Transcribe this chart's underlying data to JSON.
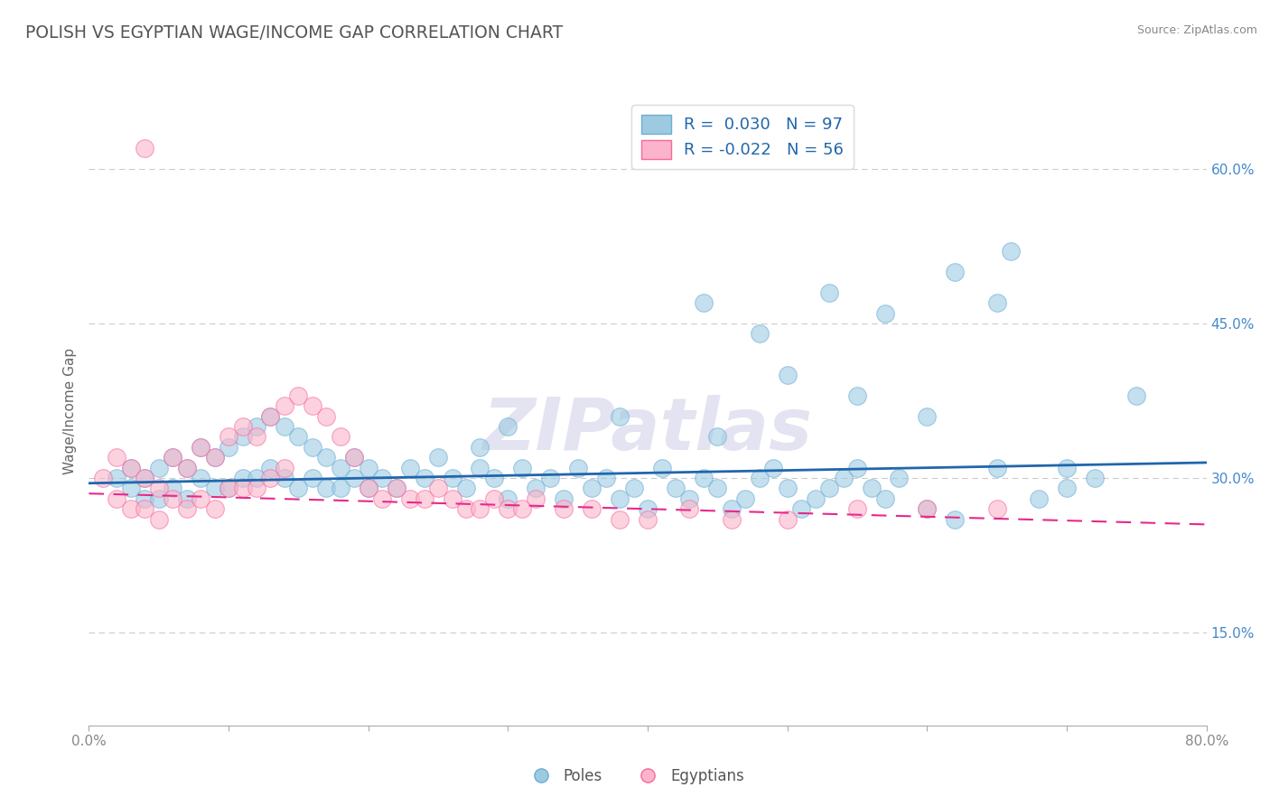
{
  "title": "POLISH VS EGYPTIAN WAGE/INCOME GAP CORRELATION CHART",
  "source": "Source: ZipAtlas.com",
  "ylabel": "Wage/Income Gap",
  "xlim": [
    0.0,
    0.8
  ],
  "ylim": [
    0.06,
    0.67
  ],
  "yticks": [
    0.15,
    0.3,
    0.45,
    0.6
  ],
  "yticklabels": [
    "15.0%",
    "30.0%",
    "45.0%",
    "60.0%"
  ],
  "poles_R": 0.03,
  "poles_N": 97,
  "egyptians_R": -0.022,
  "egyptians_N": 56,
  "blue_color": "#9ecae1",
  "pink_color": "#fbb4c9",
  "blue_edge_color": "#6baed6",
  "pink_edge_color": "#f768a1",
  "blue_line_color": "#2166ac",
  "pink_line_color": "#e7298a",
  "grid_color": "#cccccc",
  "title_color": "#555555",
  "axis_color": "#888888",
  "ytick_color": "#4488cc",
  "watermark": "ZIPatlas",
  "watermark_color": "#bbbbdd",
  "poles_x": [
    0.02,
    0.03,
    0.03,
    0.04,
    0.04,
    0.05,
    0.05,
    0.06,
    0.06,
    0.07,
    0.07,
    0.08,
    0.08,
    0.09,
    0.09,
    0.1,
    0.1,
    0.11,
    0.11,
    0.12,
    0.12,
    0.13,
    0.13,
    0.14,
    0.14,
    0.15,
    0.15,
    0.16,
    0.16,
    0.17,
    0.17,
    0.18,
    0.18,
    0.19,
    0.19,
    0.2,
    0.2,
    0.21,
    0.22,
    0.23,
    0.24,
    0.25,
    0.26,
    0.27,
    0.28,
    0.28,
    0.29,
    0.3,
    0.3,
    0.31,
    0.32,
    0.33,
    0.34,
    0.35,
    0.36,
    0.37,
    0.38,
    0.39,
    0.4,
    0.41,
    0.42,
    0.43,
    0.44,
    0.45,
    0.46,
    0.47,
    0.48,
    0.49,
    0.5,
    0.51,
    0.52,
    0.53,
    0.54,
    0.55,
    0.56,
    0.57,
    0.58,
    0.6,
    0.62,
    0.65,
    0.68,
    0.7,
    0.72,
    0.38,
    0.45,
    0.5,
    0.55,
    0.6,
    0.65,
    0.7,
    0.44,
    0.48,
    0.53,
    0.57,
    0.62,
    0.66,
    0.75
  ],
  "poles_y": [
    0.3,
    0.29,
    0.31,
    0.28,
    0.3,
    0.28,
    0.31,
    0.29,
    0.32,
    0.28,
    0.31,
    0.3,
    0.33,
    0.29,
    0.32,
    0.29,
    0.33,
    0.3,
    0.34,
    0.3,
    0.35,
    0.31,
    0.36,
    0.3,
    0.35,
    0.29,
    0.34,
    0.3,
    0.33,
    0.29,
    0.32,
    0.29,
    0.31,
    0.3,
    0.32,
    0.29,
    0.31,
    0.3,
    0.29,
    0.31,
    0.3,
    0.32,
    0.3,
    0.29,
    0.33,
    0.31,
    0.3,
    0.35,
    0.28,
    0.31,
    0.29,
    0.3,
    0.28,
    0.31,
    0.29,
    0.3,
    0.28,
    0.29,
    0.27,
    0.31,
    0.29,
    0.28,
    0.3,
    0.29,
    0.27,
    0.28,
    0.3,
    0.31,
    0.29,
    0.27,
    0.28,
    0.29,
    0.3,
    0.31,
    0.29,
    0.28,
    0.3,
    0.27,
    0.26,
    0.31,
    0.28,
    0.29,
    0.3,
    0.36,
    0.34,
    0.4,
    0.38,
    0.36,
    0.47,
    0.31,
    0.47,
    0.44,
    0.48,
    0.46,
    0.5,
    0.52,
    0.38
  ],
  "egyptians_x": [
    0.01,
    0.02,
    0.02,
    0.03,
    0.03,
    0.04,
    0.04,
    0.05,
    0.05,
    0.06,
    0.06,
    0.07,
    0.07,
    0.08,
    0.08,
    0.09,
    0.09,
    0.1,
    0.1,
    0.11,
    0.11,
    0.12,
    0.12,
    0.13,
    0.13,
    0.14,
    0.14,
    0.15,
    0.16,
    0.17,
    0.18,
    0.19,
    0.2,
    0.21,
    0.22,
    0.23,
    0.24,
    0.25,
    0.26,
    0.27,
    0.28,
    0.29,
    0.3,
    0.31,
    0.32,
    0.34,
    0.36,
    0.38,
    0.4,
    0.43,
    0.46,
    0.5,
    0.55,
    0.6,
    0.65,
    0.04
  ],
  "egyptians_y": [
    0.3,
    0.28,
    0.32,
    0.27,
    0.31,
    0.27,
    0.3,
    0.26,
    0.29,
    0.28,
    0.32,
    0.27,
    0.31,
    0.28,
    0.33,
    0.27,
    0.32,
    0.29,
    0.34,
    0.29,
    0.35,
    0.29,
    0.34,
    0.3,
    0.36,
    0.31,
    0.37,
    0.38,
    0.37,
    0.36,
    0.34,
    0.32,
    0.29,
    0.28,
    0.29,
    0.28,
    0.28,
    0.29,
    0.28,
    0.27,
    0.27,
    0.28,
    0.27,
    0.27,
    0.28,
    0.27,
    0.27,
    0.26,
    0.26,
    0.27,
    0.26,
    0.26,
    0.27,
    0.27,
    0.27,
    0.62
  ],
  "poles_trend_x": [
    0.0,
    0.8
  ],
  "poles_trend_y": [
    0.295,
    0.315
  ],
  "egyptians_trend_x": [
    0.0,
    0.8
  ],
  "egyptians_trend_y": [
    0.285,
    0.255
  ]
}
